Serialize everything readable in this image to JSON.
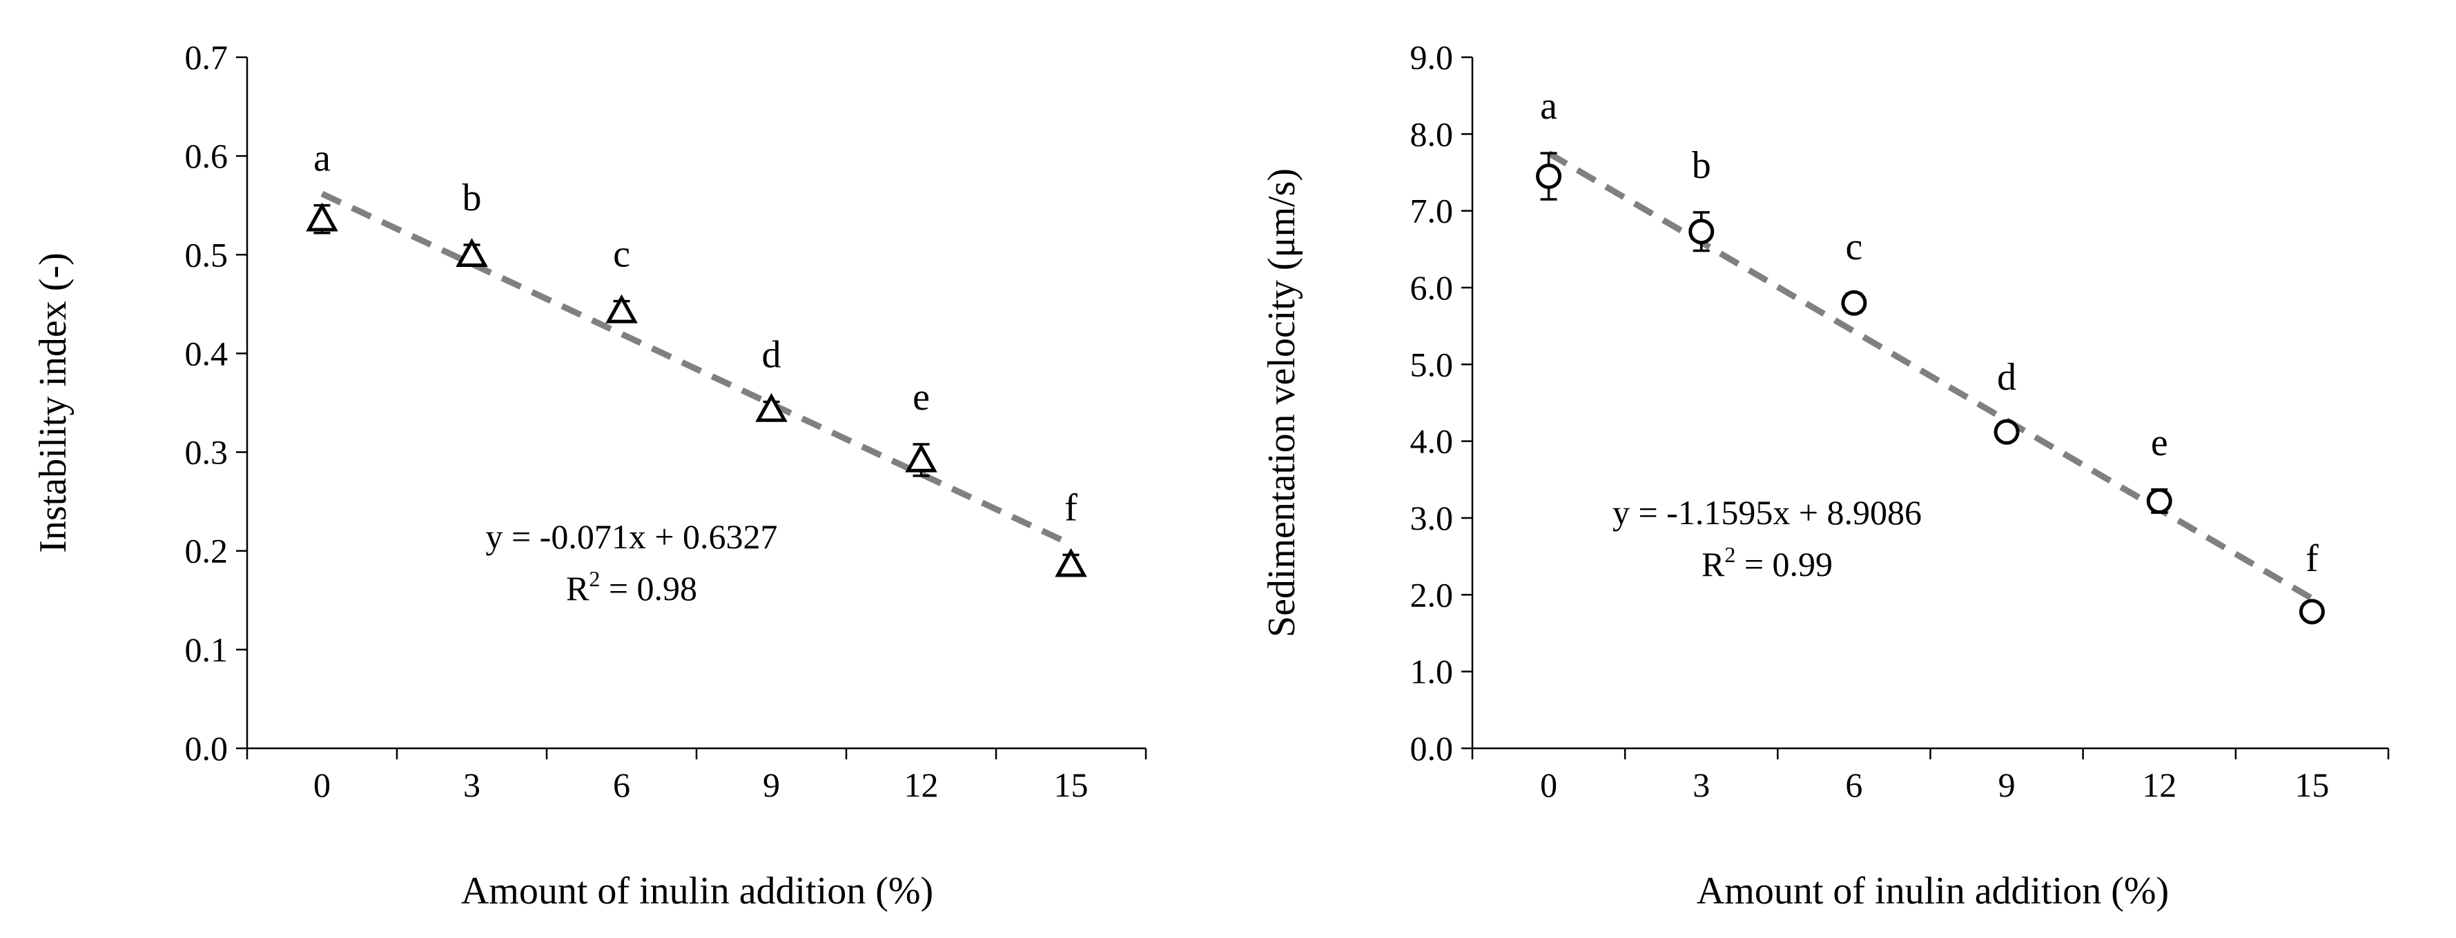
{
  "chart_data": [
    {
      "type": "scatter",
      "marker": "triangle",
      "title": "",
      "xlabel": "Amount of inulin addition (%)",
      "ylabel": "Instability index (-)",
      "categories": [
        "0",
        "3",
        "6",
        "9",
        "12",
        "15"
      ],
      "x": [
        0,
        3,
        6,
        9,
        12,
        15
      ],
      "values": [
        0.536,
        0.5,
        0.443,
        0.343,
        0.292,
        0.186
      ],
      "errors": [
        0.014,
        0.01,
        0.01,
        0.008,
        0.016,
        0.01
      ],
      "letters": [
        "a",
        "b",
        "c",
        "d",
        "e",
        "f"
      ],
      "ylim": [
        0,
        0.7
      ],
      "yticks": [
        "0.0",
        "0.1",
        "0.2",
        "0.3",
        "0.4",
        "0.5",
        "0.6",
        "0.7"
      ],
      "trendline": {
        "slope": -0.071,
        "intercept": 0.6327,
        "color": "#808080"
      },
      "equation": "y = -0.071x + 0.6327",
      "r2_prefix": "R",
      "r2_sup": "2",
      "r2_suffix": " = 0.98"
    },
    {
      "type": "scatter",
      "marker": "circle",
      "title": "",
      "xlabel": "Amount of inulin addition (%)",
      "ylabel": "Sedimentation velocity (μm/s)",
      "categories": [
        "0",
        "3",
        "6",
        "9",
        "12",
        "15"
      ],
      "x": [
        0,
        3,
        6,
        9,
        12,
        15
      ],
      "values": [
        7.45,
        6.73,
        5.8,
        4.12,
        3.22,
        1.78
      ],
      "errors": [
        0.3,
        0.25,
        0.12,
        0.1,
        0.15,
        0.08
      ],
      "letters": [
        "a",
        "b",
        "c",
        "d",
        "e",
        "f"
      ],
      "ylim": [
        0,
        9
      ],
      "yticks": [
        "0.0",
        "1.0",
        "2.0",
        "3.0",
        "4.0",
        "5.0",
        "6.0",
        "7.0",
        "8.0",
        "9.0"
      ],
      "trendline": {
        "slope": -1.1595,
        "intercept": 8.9086,
        "color": "#808080"
      },
      "equation": "y = -1.1595x + 8.9086",
      "r2_prefix": "R",
      "r2_sup": "2",
      "r2_suffix": " = 0.99"
    }
  ]
}
